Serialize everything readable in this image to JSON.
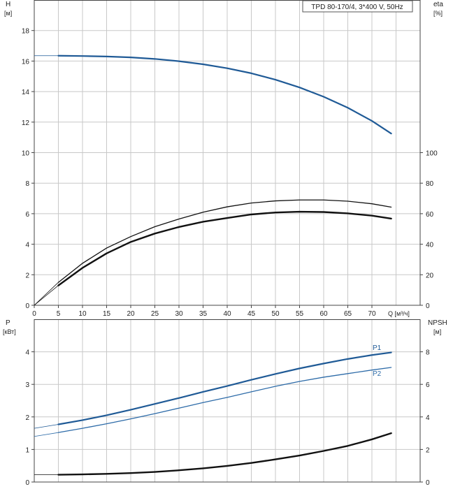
{
  "chart_data": [
    {
      "type": "line",
      "label": "TPD 80-170/4, 3*400 V, 50Hz",
      "xlabel": "Q [м³/ч]",
      "xlim": [
        0,
        80
      ],
      "x_ticks": [
        "0",
        "5",
        "10",
        "15",
        "20",
        "25",
        "30",
        "35",
        "40",
        "45",
        "50",
        "55",
        "60",
        "65",
        "70"
      ],
      "left_axis": {
        "name": "H",
        "unit": "[м]",
        "ylim": [
          0,
          20
        ],
        "ticks": [
          "0",
          "2",
          "4",
          "6",
          "8",
          "10",
          "12",
          "14",
          "16",
          "18"
        ]
      },
      "right_axis": {
        "name": "eta",
        "unit": "[%]",
        "ylim": [
          0,
          200
        ],
        "ticks": [
          "0",
          "20",
          "40",
          "60",
          "80",
          "100"
        ]
      },
      "grid": true,
      "series": [
        {
          "axis": "left",
          "color": "#1f5a96",
          "width": 2.2,
          "x": [
            0,
            5,
            10,
            15,
            20,
            25,
            30,
            35,
            40,
            45,
            50,
            55,
            60,
            65,
            70,
            74
          ],
          "y": [
            16.35,
            16.35,
            16.33,
            16.3,
            16.24,
            16.14,
            15.99,
            15.79,
            15.53,
            15.2,
            14.78,
            14.27,
            13.66,
            12.94,
            12.08,
            11.25
          ],
          "dashed_from": 0,
          "solid_from_index": 1
        },
        {
          "axis": "right",
          "color": "#111111",
          "width": 1.3,
          "x": [
            0,
            5,
            10,
            15,
            20,
            25,
            30,
            35,
            40,
            45,
            50,
            55,
            60,
            65,
            70,
            74
          ],
          "y": [
            0,
            15.0,
            27.5,
            37.5,
            45.0,
            51.5,
            56.5,
            61.0,
            64.5,
            67.0,
            68.4,
            69.0,
            69.0,
            68.2,
            66.5,
            64.3
          ]
        },
        {
          "axis": "right",
          "color": "#111111",
          "width": 2.4,
          "x": [
            0,
            5,
            10,
            15,
            20,
            25,
            30,
            35,
            40,
            45,
            50,
            55,
            60,
            65,
            70,
            74
          ],
          "y": [
            0,
            13.0,
            24.5,
            34.0,
            41.5,
            47.0,
            51.3,
            54.7,
            57.2,
            59.5,
            60.8,
            61.3,
            61.1,
            60.2,
            58.7,
            56.8
          ]
        }
      ]
    },
    {
      "type": "line",
      "xlim": [
        0,
        80
      ],
      "left_axis": {
        "name": "P",
        "unit": "[кВт]",
        "ylim": [
          0,
          5
        ],
        "ticks": [
          "0",
          "1",
          "2",
          "3",
          "4"
        ]
      },
      "right_axis": {
        "name": "NPSH",
        "unit": "[м]",
        "ylim": [
          0,
          10
        ],
        "ticks": [
          "0",
          "2",
          "4",
          "6",
          "8"
        ]
      },
      "grid": true,
      "series": [
        {
          "name": "P1",
          "axis": "left",
          "color": "#1f5a96",
          "width": 2.2,
          "x": [
            0,
            5,
            10,
            15,
            20,
            25,
            30,
            35,
            40,
            45,
            50,
            55,
            60,
            65,
            70,
            74
          ],
          "y": [
            1.65,
            1.77,
            1.9,
            2.05,
            2.22,
            2.4,
            2.58,
            2.77,
            2.95,
            3.14,
            3.32,
            3.49,
            3.64,
            3.78,
            3.9,
            3.98
          ]
        },
        {
          "name": "P2",
          "axis": "left",
          "color": "#2d6ba8",
          "width": 1.3,
          "x": [
            0,
            5,
            10,
            15,
            20,
            25,
            30,
            35,
            40,
            45,
            50,
            55,
            60,
            65,
            70,
            74
          ],
          "y": [
            1.4,
            1.52,
            1.65,
            1.79,
            1.94,
            2.1,
            2.27,
            2.44,
            2.6,
            2.77,
            2.94,
            3.09,
            3.22,
            3.33,
            3.44,
            3.52
          ]
        },
        {
          "axis": "right",
          "color": "#111111",
          "width": 2.4,
          "x": [
            0,
            5,
            10,
            15,
            20,
            25,
            30,
            35,
            40,
            45,
            50,
            55,
            60,
            65,
            70,
            74
          ],
          "y": [
            0.45,
            0.45,
            0.47,
            0.5,
            0.55,
            0.62,
            0.72,
            0.84,
            0.99,
            1.17,
            1.39,
            1.63,
            1.91,
            2.22,
            2.62,
            3.0
          ]
        }
      ]
    }
  ]
}
